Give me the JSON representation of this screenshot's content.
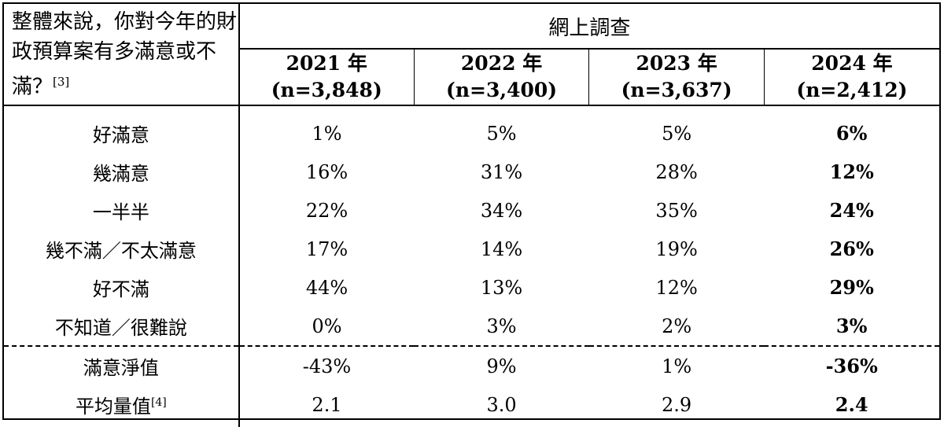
{
  "question": "整體來說，你對今年的財政預算案有多滿意或不滿？",
  "question_note": "[3]",
  "survey_header": "網上調查",
  "years": [
    {
      "year": "2021 年",
      "n": "(n=3,848)"
    },
    {
      "year": "2022 年",
      "n": "(n=3,400)"
    },
    {
      "year": "2023 年",
      "n": "(n=3,637)"
    },
    {
      "year": "2024 年",
      "n": "(n=2,412)"
    }
  ],
  "rows": [
    {
      "label": "好滿意",
      "values": [
        "1%",
        "5%",
        "5%",
        "6%"
      ]
    },
    {
      "label": "幾滿意",
      "values": [
        "16%",
        "31%",
        "28%",
        "12%"
      ]
    },
    {
      "label": "一半半",
      "values": [
        "22%",
        "34%",
        "35%",
        "24%"
      ]
    },
    {
      "label": "幾不滿／不太滿意",
      "values": [
        "17%",
        "14%",
        "19%",
        "26%"
      ]
    },
    {
      "label": "好不滿",
      "values": [
        "44%",
        "13%",
        "12%",
        "29%"
      ]
    },
    {
      "label": "不知道／很難說",
      "values": [
        "0%",
        "3%",
        "2%",
        "3%"
      ]
    }
  ],
  "summary_rows": [
    {
      "label": "滿意淨值",
      "note": "",
      "values": [
        "-43%",
        "9%",
        "1%",
        "-36%"
      ]
    },
    {
      "label": "平均量值",
      "note": "[4]",
      "values": [
        "2.1",
        "3.0",
        "2.9",
        "2.4"
      ]
    }
  ]
}
